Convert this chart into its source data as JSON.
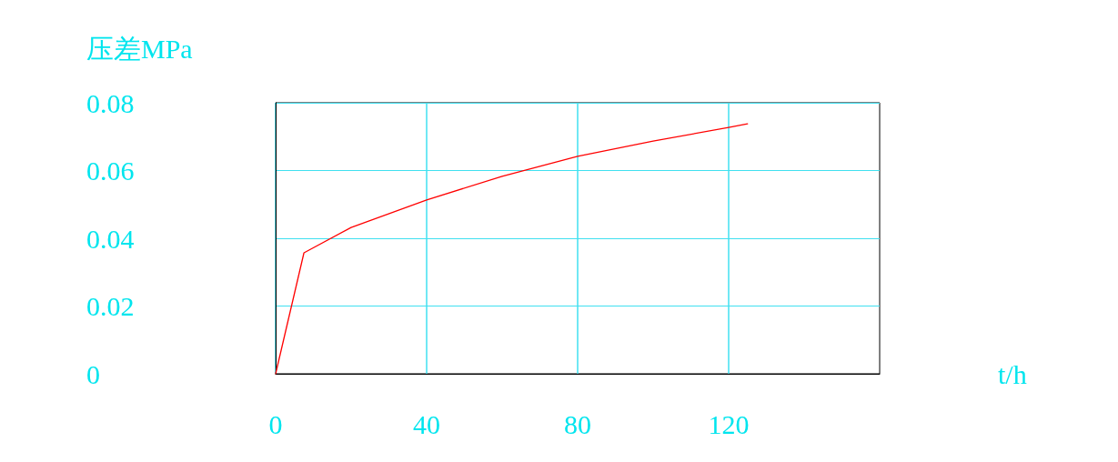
{
  "chart_data": {
    "type": "line",
    "xlabel": "t/h",
    "ylabel": "压差MPa",
    "x": [
      0,
      7.5,
      20,
      40,
      60,
      80,
      100,
      120,
      125
    ],
    "series": [
      {
        "color": "#ff0000",
        "values": [
          0,
          0.0357,
          0.0432,
          0.0513,
          0.0583,
          0.0642,
          0.0687,
          0.0727,
          0.0738
        ]
      }
    ],
    "xlim": [
      0,
      160
    ],
    "xticks": [
      0,
      40,
      80,
      120
    ],
    "ylim": [
      0,
      0.08
    ],
    "yticks": [
      0,
      0.02,
      0.04,
      0.06,
      0.08
    ],
    "grid": true,
    "marker": "none",
    "line_style": "solid"
  }
}
